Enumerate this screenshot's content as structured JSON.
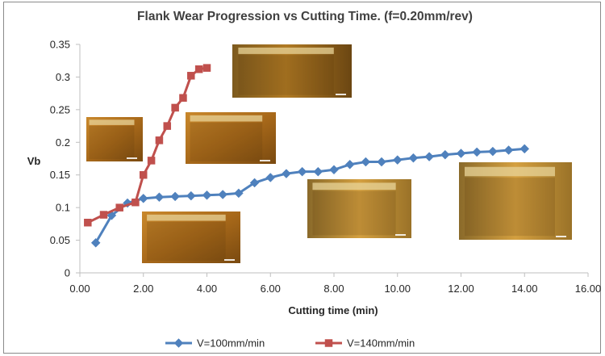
{
  "chart_data": {
    "type": "line",
    "title": "Flank Wear Progression vs Cutting Time. (f=0.20mm/rev)",
    "xlabel": "Cutting time (min)",
    "ylabel": "Vb",
    "xlim": [
      0,
      16
    ],
    "ylim": [
      0,
      0.35
    ],
    "x_tick_labels": [
      "0.00",
      "2.00",
      "4.00",
      "6.00",
      "8.00",
      "10.00",
      "12.00",
      "14.00",
      "16.00"
    ],
    "y_tick_labels": [
      "0",
      "0.05",
      "0.1",
      "0.15",
      "0.2",
      "0.25",
      "0.3",
      "0.35"
    ],
    "grid": false,
    "legend_position": "bottom",
    "series": [
      {
        "name": "V=100mm/min",
        "color": "#4f81bd",
        "marker": "diamond",
        "x": [
          0.5,
          1.0,
          1.5,
          2.0,
          2.5,
          3.0,
          3.5,
          4.0,
          4.5,
          5.0,
          5.5,
          6.0,
          6.5,
          7.0,
          7.5,
          8.0,
          8.5,
          9.0,
          9.5,
          10.0,
          10.5,
          11.0,
          11.5,
          12.0,
          12.5,
          13.0,
          13.5,
          14.0
        ],
        "y": [
          0.046,
          0.088,
          0.107,
          0.114,
          0.116,
          0.117,
          0.118,
          0.119,
          0.12,
          0.122,
          0.138,
          0.146,
          0.152,
          0.155,
          0.155,
          0.158,
          0.166,
          0.17,
          0.17,
          0.173,
          0.176,
          0.178,
          0.181,
          0.183,
          0.185,
          0.186,
          0.188,
          0.19
        ]
      },
      {
        "name": "V=140mm/min",
        "color": "#c0504d",
        "marker": "square",
        "x": [
          0.25,
          0.75,
          1.25,
          1.75,
          2.0,
          2.25,
          2.5,
          2.75,
          3.0,
          3.25,
          3.5,
          3.75,
          4.0
        ],
        "y": [
          0.077,
          0.089,
          0.1,
          0.108,
          0.15,
          0.172,
          0.203,
          0.225,
          0.253,
          0.268,
          0.302,
          0.312,
          0.314
        ]
      }
    ]
  },
  "photos": [
    {
      "name": "wear-photo-1"
    },
    {
      "name": "wear-photo-2"
    },
    {
      "name": "wear-photo-3"
    },
    {
      "name": "wear-photo-4"
    },
    {
      "name": "wear-photo-5"
    },
    {
      "name": "wear-photo-6"
    }
  ]
}
